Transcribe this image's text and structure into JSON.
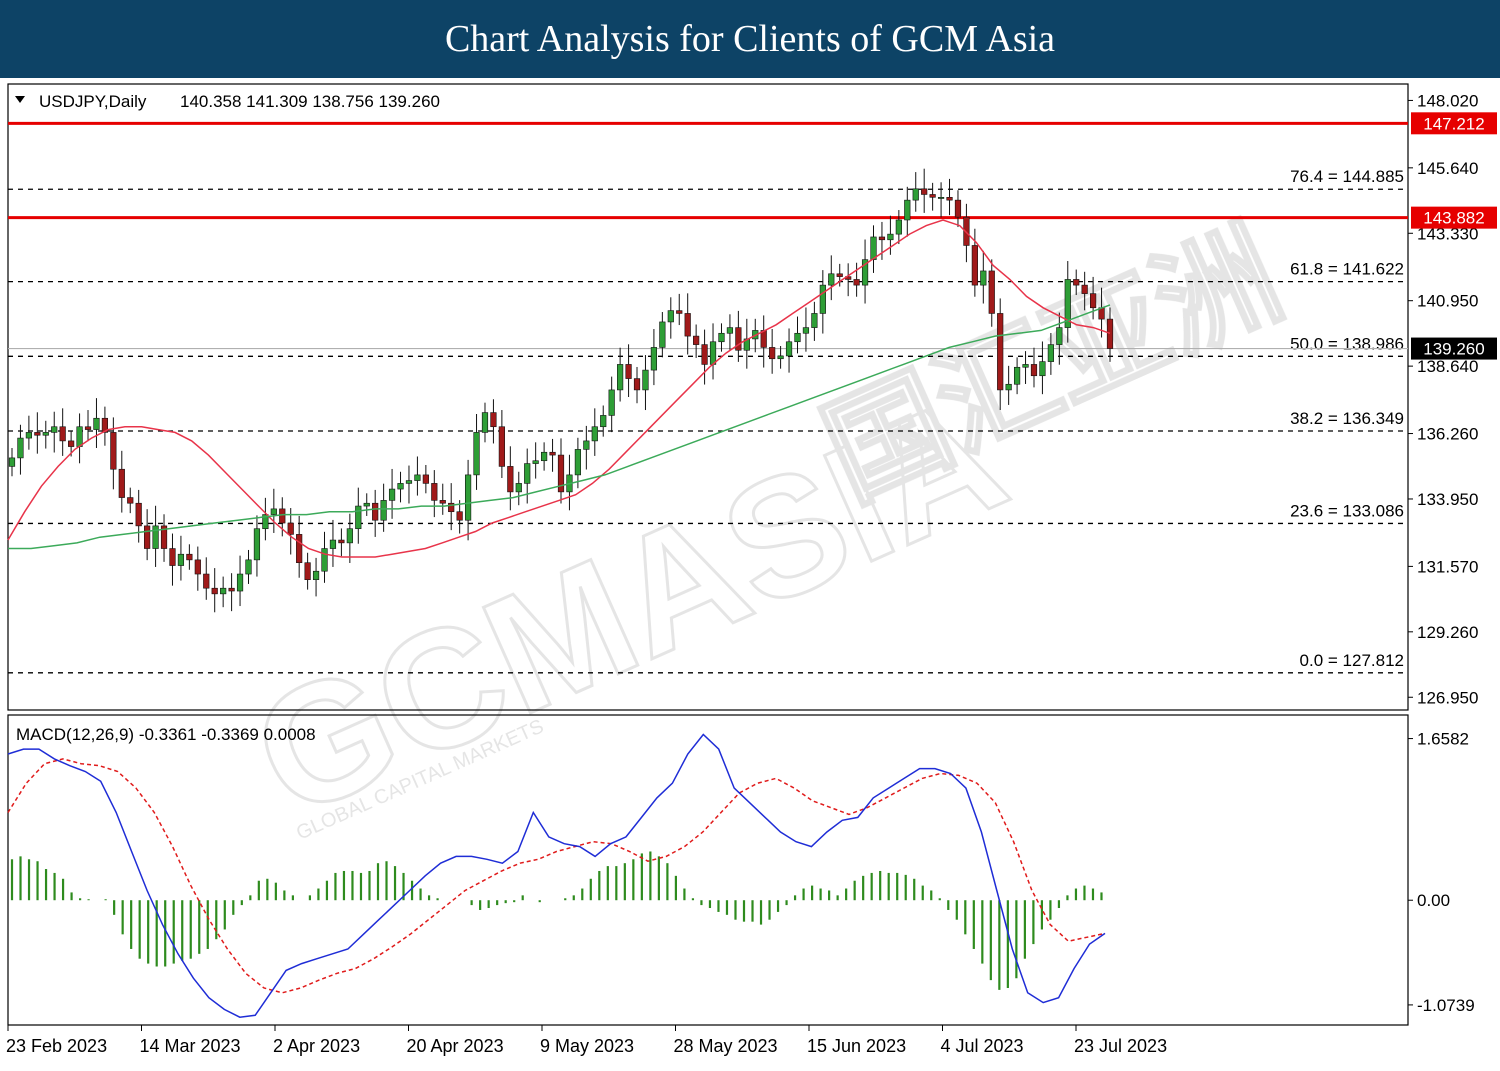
{
  "header": {
    "title": "Chart Analysis for Clients of GCM Asia"
  },
  "watermark": {
    "brand": "GCMASIA",
    "cjk": "国汇亚洲",
    "tagline": "GLOBAL CAPITAL MARKETS"
  },
  "colors": {
    "header_bg": "#0d4366",
    "sma_red": "#e8344a",
    "sma_green": "#3caa5a",
    "macd_line": "#1f2dd6",
    "signal_line": "#e01b1b",
    "histogram": "#2e8b1e",
    "bull": "#2e9e36",
    "bear": "#a01a1a",
    "resistance": "#e60000"
  },
  "chart_data": [
    {
      "type": "candlestick",
      "symbol_label": "USDJPY,Daily",
      "ohlc_label": "140.358 141.309 138.756 139.260",
      "last_price": 139.26,
      "last_price_label": "139.260",
      "ylim": [
        126.5,
        148.6
      ],
      "y_ticks": [
        "148.020",
        "145.640",
        "143.330",
        "140.950",
        "138.640",
        "136.260",
        "133.950",
        "131.570",
        "129.260",
        "126.950"
      ],
      "x_ticks": [
        "23 Feb 2023",
        "14 Mar 2023",
        "2 Apr 2023",
        "20 Apr 2023",
        "9 May 2023",
        "28 May 2023",
        "15 Jun 2023",
        "4 Jul 2023",
        "23 Jul 2023"
      ],
      "resistance_levels": [
        {
          "value": 147.212,
          "label": "147.212"
        },
        {
          "value": 143.882,
          "label": "143.882"
        }
      ],
      "fibonacci": [
        {
          "value": 144.885,
          "label": "76.4 = 144.885"
        },
        {
          "value": 141.622,
          "label": "61.8 = 141.622"
        },
        {
          "value": 138.986,
          "label": "50.0 = 138.986"
        },
        {
          "value": 136.349,
          "label": "38.2 = 136.349"
        },
        {
          "value": 133.086,
          "label": "23.6 = 133.086"
        },
        {
          "value": 127.812,
          "label": "0.0 = 127.812"
        }
      ],
      "close_series": [
        135.4,
        136.1,
        136.3,
        136.2,
        136.3,
        136.5,
        136.0,
        135.8,
        136.5,
        136.4,
        136.8,
        136.3,
        135.0,
        134.0,
        133.8,
        133.0,
        132.2,
        133.0,
        132.2,
        131.6,
        132.0,
        131.8,
        131.3,
        130.8,
        130.6,
        130.8,
        130.7,
        131.3,
        131.8,
        132.9,
        133.4,
        133.6,
        133.1,
        132.7,
        131.7,
        131.1,
        131.4,
        132.2,
        132.5,
        132.4,
        132.9,
        133.7,
        133.8,
        133.2,
        133.9,
        134.3,
        134.5,
        134.6,
        134.8,
        134.5,
        133.9,
        133.8,
        133.5,
        133.2,
        134.8,
        136.3,
        137.0,
        136.5,
        135.1,
        134.2,
        134.5,
        135.2,
        135.3,
        135.6,
        135.5,
        134.2,
        134.8,
        135.7,
        136.0,
        136.5,
        136.9,
        137.8,
        138.7,
        138.2,
        137.8,
        138.5,
        139.3,
        140.2,
        140.6,
        140.5,
        139.7,
        139.4,
        138.7,
        139.5,
        139.8,
        140.0,
        139.2,
        139.6,
        139.9,
        139.3,
        138.9,
        139.0,
        139.5,
        139.8,
        140.0,
        140.5,
        141.5,
        141.9,
        141.8,
        141.7,
        141.5,
        142.4,
        143.2,
        143.1,
        143.3,
        143.8,
        144.5,
        144.9,
        144.7,
        144.6,
        144.6,
        144.5,
        143.9,
        142.9,
        141.5,
        142.0,
        140.5,
        137.8,
        138.0,
        138.6,
        138.7,
        138.3,
        138.8,
        139.4,
        140.0,
        141.7,
        141.5,
        141.2,
        140.7,
        140.3,
        139.26
      ],
      "sma_red_series": [
        132.5,
        133.5,
        134.4,
        135.1,
        135.7,
        136.1,
        136.4,
        136.5,
        136.5,
        136.4,
        136.3,
        136.0,
        135.5,
        134.9,
        134.3,
        133.7,
        133.1,
        132.6,
        132.2,
        132.0,
        131.9,
        131.9,
        131.9,
        132.0,
        132.1,
        132.2,
        132.4,
        132.6,
        132.8,
        133.1,
        133.3,
        133.5,
        133.7,
        133.9,
        134.1,
        134.5,
        135.0,
        135.6,
        136.2,
        136.8,
        137.4,
        138.0,
        138.6,
        139.1,
        139.5,
        139.8,
        140.1,
        140.5,
        140.9,
        141.3,
        141.7,
        142.1,
        142.5,
        142.9,
        143.3,
        143.6,
        143.8,
        143.6,
        143.0,
        142.2,
        141.7,
        141.1,
        140.7,
        140.4,
        140.1,
        140.0,
        139.8
      ],
      "sma_green_series": [
        132.2,
        132.2,
        132.3,
        132.4,
        132.6,
        132.7,
        132.8,
        132.9,
        133.0,
        133.1,
        133.2,
        133.3,
        133.4,
        133.4,
        133.5,
        133.5,
        133.6,
        133.6,
        133.7,
        133.7,
        133.8,
        133.9,
        134.0,
        134.2,
        134.4,
        134.6,
        134.8,
        135.1,
        135.4,
        135.7,
        136.0,
        136.3,
        136.6,
        136.9,
        137.2,
        137.5,
        137.8,
        138.1,
        138.4,
        138.7,
        139.0,
        139.3,
        139.5,
        139.7,
        139.8,
        139.9,
        140.2,
        140.5,
        140.8
      ]
    },
    {
      "type": "macd",
      "label": "MACD(12,26,9) -0.3361 -0.3369 0.0008",
      "ylim": [
        -1.28,
        1.9
      ],
      "y_ticks": [
        "1.6582",
        "0.00",
        "-1.0739"
      ],
      "macd_series": [
        1.5,
        1.55,
        1.55,
        1.45,
        1.38,
        1.32,
        1.22,
        0.9,
        0.5,
        0.1,
        -0.25,
        -0.55,
        -0.8,
        -1.0,
        -1.12,
        -1.2,
        -1.18,
        -0.95,
        -0.72,
        -0.65,
        -0.6,
        -0.55,
        -0.5,
        -0.35,
        -0.2,
        -0.05,
        0.1,
        0.25,
        0.38,
        0.45,
        0.45,
        0.42,
        0.38,
        0.5,
        0.9,
        0.65,
        0.58,
        0.55,
        0.45,
        0.58,
        0.65,
        0.85,
        1.05,
        1.2,
        1.5,
        1.7,
        1.55,
        1.15,
        1.0,
        0.85,
        0.7,
        0.6,
        0.55,
        0.7,
        0.82,
        0.85,
        1.05,
        1.15,
        1.25,
        1.35,
        1.35,
        1.3,
        1.15,
        0.7,
        0.1,
        -0.5,
        -0.95,
        -1.05,
        -1.0,
        -0.7,
        -0.45,
        -0.34
      ],
      "signal_series": [
        0.9,
        1.2,
        1.4,
        1.45,
        1.4,
        1.38,
        1.32,
        1.15,
        0.9,
        0.55,
        0.15,
        -0.2,
        -0.5,
        -0.75,
        -0.9,
        -0.95,
        -0.9,
        -0.82,
        -0.75,
        -0.7,
        -0.6,
        -0.48,
        -0.35,
        -0.2,
        -0.05,
        0.1,
        0.2,
        0.3,
        0.38,
        0.42,
        0.5,
        0.55,
        0.6,
        0.58,
        0.5,
        0.4,
        0.45,
        0.55,
        0.7,
        0.9,
        1.1,
        1.2,
        1.25,
        1.15,
        1.02,
        0.95,
        0.88,
        0.95,
        1.05,
        1.15,
        1.25,
        1.3,
        1.28,
        1.2,
        1.0,
        0.6,
        0.1,
        -0.25,
        -0.42,
        -0.38,
        -0.34
      ],
      "histogram_series": [
        0.42,
        0.45,
        0.42,
        0.4,
        0.32,
        0.28,
        0.22,
        0.08,
        0.02,
        0.01,
        0.0,
        0.01,
        -0.15,
        -0.35,
        -0.5,
        -0.6,
        -0.65,
        -0.68,
        -0.68,
        -0.65,
        -0.62,
        -0.6,
        -0.55,
        -0.5,
        -0.4,
        -0.3,
        -0.15,
        -0.05,
        0.05,
        0.2,
        0.22,
        0.18,
        0.1,
        0.05,
        0.0,
        0.05,
        0.12,
        0.2,
        0.28,
        0.3,
        0.3,
        0.28,
        0.3,
        0.38,
        0.4,
        0.35,
        0.28,
        0.2,
        0.12,
        0.05,
        0.02,
        0.0,
        0.0,
        0.0,
        -0.05,
        -0.1,
        -0.08,
        -0.05,
        -0.03,
        -0.02,
        0.05,
        0.0,
        -0.02,
        0.0,
        0.0,
        0.02,
        0.05,
        0.12,
        0.22,
        0.3,
        0.35,
        0.35,
        0.38,
        0.42,
        0.48,
        0.5,
        0.45,
        0.38,
        0.25,
        0.12,
        0.02,
        -0.05,
        -0.08,
        -0.12,
        -0.15,
        -0.2,
        -0.22,
        -0.22,
        -0.25,
        -0.2,
        -0.12,
        -0.05,
        0.05,
        0.12,
        0.15,
        0.12,
        0.1,
        0.05,
        0.12,
        0.2,
        0.25,
        0.28,
        0.3,
        0.28,
        0.28,
        0.26,
        0.22,
        0.15,
        0.1,
        0.02,
        -0.1,
        -0.2,
        -0.35,
        -0.5,
        -0.65,
        -0.82,
        -0.92,
        -0.9,
        -0.8,
        -0.6,
        -0.45,
        -0.3,
        -0.2,
        -0.08,
        0.05,
        0.12,
        0.15,
        0.12,
        0.08,
        0.0
      ]
    }
  ]
}
